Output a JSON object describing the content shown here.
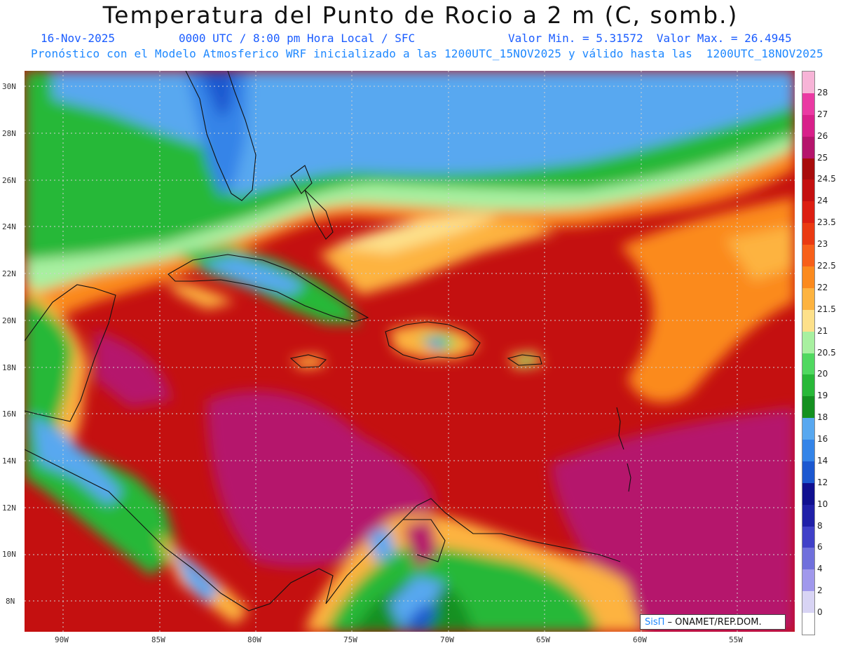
{
  "header": {
    "title": "Temperatura del Punto de Rocio a 2 m (C, somb.)",
    "date": "16-Nov-2025",
    "time_info": "0000 UTC / 8:00 pm Hora Local / SFC",
    "min_max": "Valor Min. = 5.31572  Valor Max. = 26.4945",
    "forecast_info": "Pronóstico con el Modelo Atmosferico WRF inicializado a las 1200UTC_15NOV2025 y válido hasta las  1200UTC_18NOV2025"
  },
  "axes": {
    "lat_labels": [
      "30N",
      "28N",
      "26N",
      "24N",
      "22N",
      "20N",
      "18N",
      "16N",
      "14N",
      "12N",
      "10N",
      "8N"
    ],
    "lon_labels": [
      "90W",
      "85W",
      "80W",
      "75W",
      "70W",
      "65W",
      "60W",
      "55W"
    ]
  },
  "colorbar": {
    "labels": [
      "28",
      "27",
      "26",
      "25",
      "24.5",
      "24",
      "23.5",
      "23",
      "22.5",
      "22",
      "21.5",
      "21",
      "20.5",
      "20",
      "19",
      "18",
      "16",
      "14",
      "12",
      "10",
      "8",
      "6",
      "4",
      "2",
      "0"
    ],
    "colors": [
      "#f7b4d7",
      "#ea3aa3",
      "#d8208a",
      "#b5156c",
      "#a80c0c",
      "#c41010",
      "#dc1e12",
      "#ea3a12",
      "#f7601a",
      "#fb8a1e",
      "#fdb340",
      "#fde08a",
      "#a8f0a0",
      "#50d860",
      "#28b838",
      "#149020",
      "#58a8f0",
      "#3484e8",
      "#1c58d0",
      "#101090",
      "#2020a8",
      "#4040c8",
      "#7070dc",
      "#a098ec",
      "#d8d4f4",
      "#ffffff"
    ]
  },
  "credit": {
    "brand": "SisΠ",
    "text": " – ONAMET/REP.DOM."
  }
}
